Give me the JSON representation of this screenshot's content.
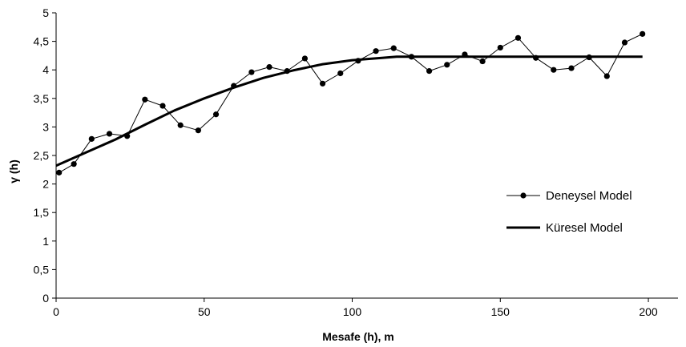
{
  "chart_data": {
    "type": "line",
    "xlabel": "Mesafe (h), m",
    "ylabel": "γ (h)",
    "xlim": [
      0,
      210
    ],
    "ylim": [
      0,
      5
    ],
    "x_ticks": [
      "0",
      "50",
      "100",
      "150",
      "200"
    ],
    "y_ticks": [
      "0",
      "0,5",
      "1",
      "1,5",
      "2",
      "2,5",
      "3",
      "3,5",
      "4",
      "4,5",
      "5"
    ],
    "grid": false,
    "legend_position": "right",
    "series": [
      {
        "name": "Deneysel Model",
        "style": "line-markers",
        "color": "#000000",
        "x": [
          1,
          6,
          12,
          18,
          24,
          30,
          36,
          42,
          48,
          54,
          60,
          66,
          72,
          78,
          84,
          90,
          96,
          102,
          108,
          114,
          120,
          126,
          132,
          138,
          144,
          150,
          156,
          162,
          168,
          174,
          180,
          186,
          192,
          198
        ],
        "y": [
          2.2,
          2.35,
          2.79,
          2.88,
          2.84,
          3.48,
          3.37,
          3.03,
          2.94,
          3.22,
          3.72,
          3.96,
          4.05,
          3.98,
          4.2,
          3.76,
          3.94,
          4.16,
          4.33,
          4.38,
          4.23,
          3.98,
          4.09,
          4.27,
          4.15,
          4.39,
          4.56,
          4.21,
          4.0,
          4.03,
          4.22,
          3.89,
          4.48,
          4.63
        ]
      },
      {
        "name": "Küresel Model",
        "style": "thick-line",
        "color": "#000000",
        "x": [
          0,
          10,
          20,
          30,
          40,
          50,
          60,
          70,
          80,
          90,
          100,
          110,
          115,
          120,
          198
        ],
        "y": [
          2.32,
          2.55,
          2.78,
          3.04,
          3.29,
          3.5,
          3.69,
          3.86,
          3.99,
          4.1,
          4.17,
          4.21,
          4.23,
          4.23,
          4.23
        ]
      }
    ]
  }
}
